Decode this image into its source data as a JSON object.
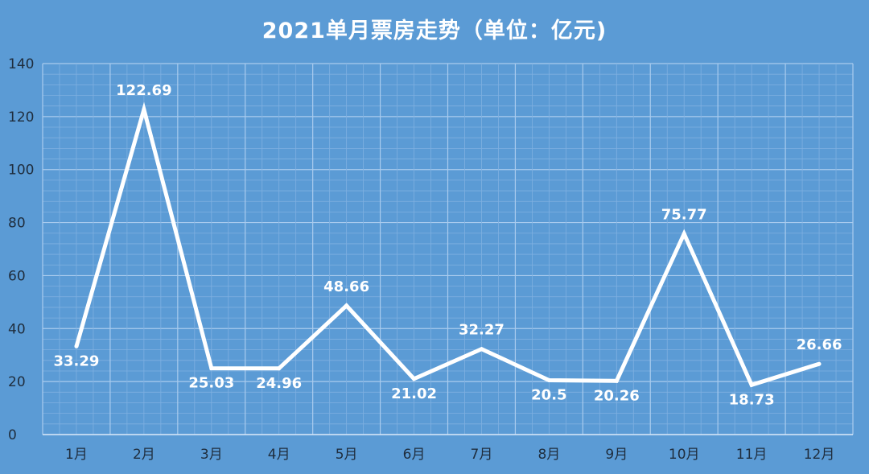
{
  "chart_data": {
    "type": "line",
    "title": "2021单月票房走势（单位：亿元)",
    "xlabel": "",
    "ylabel": "",
    "categories": [
      "1月",
      "2月",
      "3月",
      "4月",
      "5月",
      "6月",
      "7月",
      "8月",
      "9月",
      "10月",
      "11月",
      "12月"
    ],
    "series": [
      {
        "values": [
          33.29,
          122.69,
          25.03,
          24.96,
          48.66,
          21.02,
          32.27,
          20.5,
          20.26,
          75.77,
          18.73,
          26.66
        ]
      }
    ],
    "data_labels": [
      "33.29",
      "122.69",
      "25.03",
      "24.96",
      "48.66",
      "21.02",
      "32.27",
      "20.5",
      "20.26",
      "75.77",
      "18.73",
      "26.66"
    ],
    "label_positions": [
      "below",
      "above",
      "below",
      "below",
      "above",
      "below",
      "above",
      "below",
      "below",
      "above",
      "below",
      "above"
    ],
    "ylim": [
      0,
      140
    ],
    "yticks": [
      0,
      20,
      40,
      60,
      80,
      100,
      120,
      140
    ],
    "grid": true,
    "legend": "none",
    "colors": {
      "background": "#5b9bd5",
      "line": "#ffffff",
      "grid": "#8fbbe6",
      "tick_text": "#1f2d3d"
    }
  }
}
